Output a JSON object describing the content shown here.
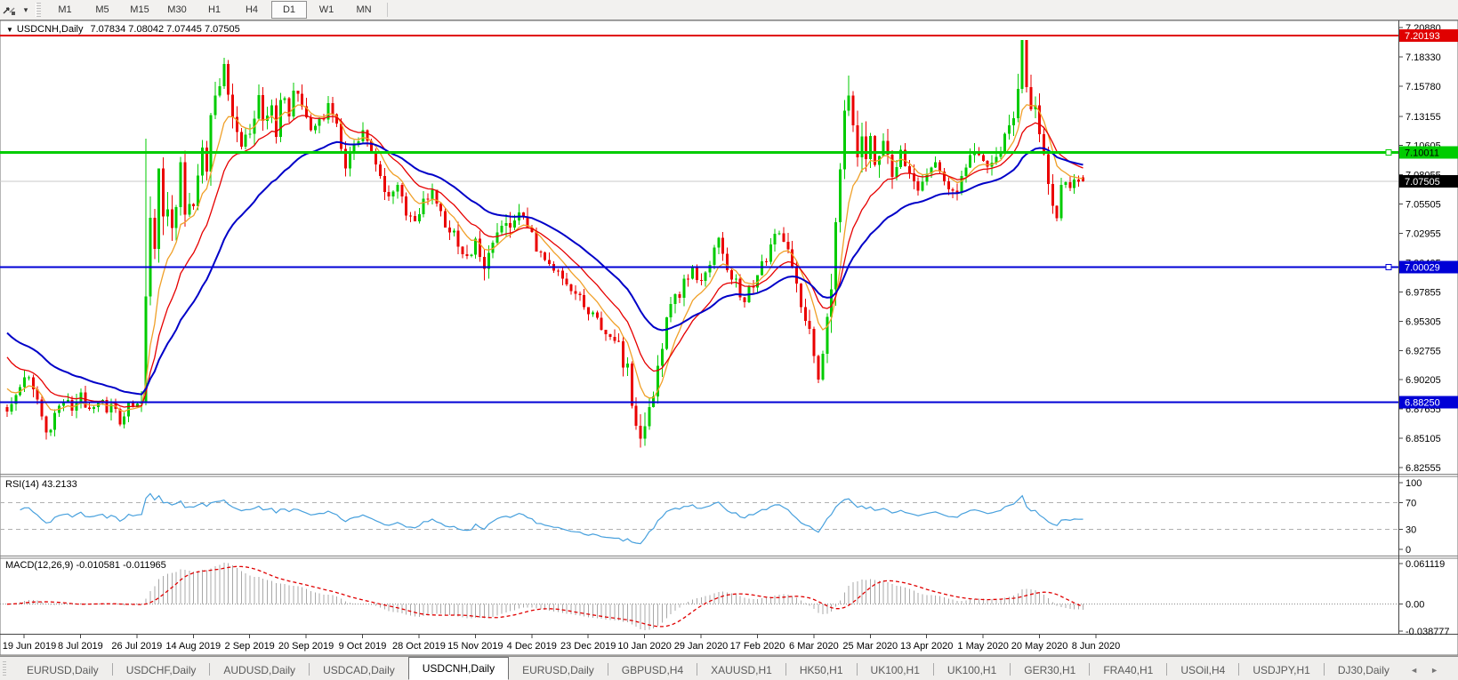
{
  "toolbar": {
    "dropdown_icon": "▾",
    "timeframes": [
      "M1",
      "M5",
      "M15",
      "M30",
      "H1",
      "H4",
      "D1",
      "W1",
      "MN"
    ],
    "active_timeframe": "D1"
  },
  "chart": {
    "title_arrow": "▼",
    "symbol_title": "USDCNH,Daily",
    "ohlc_text": "7.07834 7.08042 7.07445 7.07505"
  },
  "tabs": {
    "items": [
      "EURUSD,Daily",
      "USDCHF,Daily",
      "AUDUSD,Daily",
      "USDCAD,Daily",
      "USDCNH,Daily",
      "EURUSD,Daily",
      "GBPUSD,H4",
      "XAUUSD,H1",
      "HK50,H1",
      "UK100,H1",
      "UK100,H1",
      "GER30,H1",
      "FRA40,H1",
      "USOil,H4",
      "USDJPY,H1",
      "DJ30,Daily"
    ],
    "active_index": 4,
    "scroll_left": "◄",
    "scroll_right": "►"
  },
  "price_axis": {
    "ticks": [
      "7.20880",
      "7.18330",
      "7.15780",
      "7.13155",
      "7.10605",
      "7.08055",
      "7.05505",
      "7.02955",
      "7.00405",
      "6.97855",
      "6.95305",
      "6.92755",
      "6.90205",
      "6.87655",
      "6.85105",
      "6.82555"
    ]
  },
  "price_levels": [
    {
      "name": "resistance-line",
      "value": "7.20193",
      "price": 7.20193,
      "color": "#E00000",
      "badge_text": "#FFFFFF",
      "thickness": 2,
      "handle": false
    },
    {
      "name": "green-level-line",
      "value": "7.10011",
      "price": 7.10011,
      "color": "#00CC00",
      "badge_text": "#000000",
      "thickness": 3,
      "handle": true
    },
    {
      "name": "current-price-line",
      "value": "7.07505",
      "price": 7.07505,
      "color": "#C8C8C8",
      "badge_bg": "#000000",
      "badge_text": "#FFFFFF",
      "thickness": 1,
      "handle": false
    },
    {
      "name": "support-line-700",
      "value": "7.00029",
      "price": 7.00029,
      "color": "#0000D6",
      "badge_text": "#FFFFFF",
      "thickness": 2,
      "handle": true
    },
    {
      "name": "support-line-688",
      "value": "6.88250",
      "price": 6.8825,
      "color": "#0000D6",
      "badge_text": "#FFFFFF",
      "thickness": 2,
      "handle": false
    }
  ],
  "chart_data": {
    "type": "candlestick",
    "symbol": "USDCNH",
    "timeframe": "Daily",
    "current": {
      "open": 7.07834,
      "high": 7.08042,
      "low": 7.07445,
      "close": 7.07505
    },
    "y_range": {
      "top": 7.2088,
      "bottom": 6.82555
    },
    "x_dates": [
      "19 Jun 2019",
      "8 Jul 2019",
      "26 Jul 2019",
      "14 Aug 2019",
      "2 Sep 2019",
      "20 Sep 2019",
      "9 Oct 2019",
      "28 Oct 2019",
      "15 Nov 2019",
      "4 Dec 2019",
      "23 Dec 2019",
      "10 Jan 2020",
      "29 Jan 2020",
      "17 Feb 2020",
      "6 Mar 2020",
      "25 Mar 2020",
      "13 Apr 2020",
      "1 May 2020",
      "20 May 2020",
      "8 Jun 2020"
    ],
    "num_candles": 249,
    "candle_colors": {
      "up": "#00CB00",
      "down": "#EA0000"
    },
    "close_anchors": [
      [
        0,
        6.878
      ],
      [
        3,
        6.895
      ],
      [
        5,
        6.908
      ],
      [
        7,
        6.885
      ],
      [
        9,
        6.856
      ],
      [
        11,
        6.872
      ],
      [
        13,
        6.884
      ],
      [
        15,
        6.877
      ],
      [
        17,
        6.888
      ],
      [
        19,
        6.879
      ],
      [
        21,
        6.886
      ],
      [
        23,
        6.872
      ],
      [
        25,
        6.88
      ],
      [
        26,
        6.86
      ],
      [
        27,
        6.874
      ],
      [
        29,
        6.882
      ],
      [
        31,
        6.884
      ],
      [
        32,
        6.97
      ],
      [
        33,
        7.04
      ],
      [
        34,
        7.018
      ],
      [
        35,
        7.075
      ],
      [
        36,
        7.048
      ],
      [
        37,
        7.062
      ],
      [
        38,
        7.04
      ],
      [
        39,
        7.058
      ],
      [
        40,
        7.085
      ],
      [
        41,
        7.038
      ],
      [
        42,
        7.052
      ],
      [
        43,
        7.062
      ],
      [
        44,
        7.08
      ],
      [
        45,
        7.098
      ],
      [
        46,
        7.088
      ],
      [
        47,
        7.124
      ],
      [
        48,
        7.148
      ],
      [
        49,
        7.168
      ],
      [
        50,
        7.186
      ],
      [
        51,
        7.15
      ],
      [
        52,
        7.128
      ],
      [
        53,
        7.118
      ],
      [
        55,
        7.108
      ],
      [
        57,
        7.132
      ],
      [
        58,
        7.148
      ],
      [
        59,
        7.126
      ],
      [
        61,
        7.138
      ],
      [
        62,
        7.12
      ],
      [
        63,
        7.152
      ],
      [
        64,
        7.142
      ],
      [
        65,
        7.134
      ],
      [
        66,
        7.148
      ],
      [
        67,
        7.158
      ],
      [
        68,
        7.14
      ],
      [
        69,
        7.132
      ],
      [
        70,
        7.118
      ],
      [
        72,
        7.13
      ],
      [
        74,
        7.14
      ],
      [
        76,
        7.122
      ],
      [
        78,
        7.092
      ],
      [
        80,
        7.102
      ],
      [
        82,
        7.118
      ],
      [
        84,
        7.098
      ],
      [
        86,
        7.078
      ],
      [
        88,
        7.062
      ],
      [
        90,
        7.068
      ],
      [
        92,
        7.05
      ],
      [
        94,
        7.042
      ],
      [
        96,
        7.058
      ],
      [
        98,
        7.068
      ],
      [
        100,
        7.048
      ],
      [
        102,
        7.032
      ],
      [
        104,
        7.022
      ],
      [
        106,
        7.012
      ],
      [
        108,
        7.018
      ],
      [
        110,
        7.006
      ],
      [
        112,
        7.022
      ],
      [
        114,
        7.034
      ],
      [
        116,
        7.028
      ],
      [
        117,
        7.048
      ],
      [
        119,
        7.038
      ],
      [
        121,
        7.026
      ],
      [
        123,
        7.014
      ],
      [
        125,
        7.004
      ],
      [
        127,
        6.996
      ],
      [
        129,
        6.988
      ],
      [
        131,
        6.978
      ],
      [
        133,
        6.966
      ],
      [
        135,
        6.956
      ],
      [
        137,
        6.946
      ],
      [
        139,
        6.938
      ],
      [
        141,
        6.93
      ],
      [
        143,
        6.908
      ],
      [
        144,
        6.888
      ],
      [
        145,
        6.868
      ],
      [
        146,
        6.85
      ],
      [
        147,
        6.862
      ],
      [
        148,
        6.882
      ],
      [
        149,
        6.896
      ],
      [
        150,
        6.912
      ],
      [
        151,
        6.936
      ],
      [
        152,
        6.956
      ],
      [
        154,
        6.972
      ],
      [
        156,
        6.988
      ],
      [
        158,
        7.0
      ],
      [
        160,
        6.988
      ],
      [
        162,
        7.006
      ],
      [
        164,
        7.022
      ],
      [
        166,
        7.002
      ],
      [
        168,
        6.986
      ],
      [
        170,
        6.972
      ],
      [
        172,
        6.986
      ],
      [
        174,
        7.002
      ],
      [
        176,
        7.016
      ],
      [
        178,
        7.032
      ],
      [
        180,
        7.012
      ],
      [
        182,
        6.982
      ],
      [
        184,
        6.956
      ],
      [
        186,
        6.928
      ],
      [
        187,
        6.902
      ],
      [
        188,
        6.922
      ],
      [
        189,
        6.952
      ],
      [
        190,
        6.992
      ],
      [
        191,
        7.032
      ],
      [
        192,
        7.082
      ],
      [
        193,
        7.124
      ],
      [
        194,
        7.16
      ],
      [
        195,
        7.132
      ],
      [
        196,
        7.102
      ],
      [
        197,
        7.122
      ],
      [
        198,
        7.096
      ],
      [
        199,
        7.112
      ],
      [
        200,
        7.092
      ],
      [
        202,
        7.102
      ],
      [
        204,
        7.086
      ],
      [
        206,
        7.096
      ],
      [
        208,
        7.076
      ],
      [
        210,
        7.062
      ],
      [
        212,
        7.076
      ],
      [
        214,
        7.092
      ],
      [
        216,
        7.076
      ],
      [
        218,
        7.062
      ],
      [
        220,
        7.076
      ],
      [
        222,
        7.092
      ],
      [
        224,
        7.102
      ],
      [
        226,
        7.086
      ],
      [
        228,
        7.096
      ],
      [
        230,
        7.112
      ],
      [
        232,
        7.132
      ],
      [
        233,
        7.162
      ],
      [
        234,
        7.19
      ],
      [
        235,
        7.156
      ],
      [
        236,
        7.132
      ],
      [
        237,
        7.146
      ],
      [
        238,
        7.12
      ],
      [
        239,
        7.1
      ],
      [
        240,
        7.08
      ],
      [
        241,
        7.06
      ],
      [
        242,
        7.046
      ],
      [
        243,
        7.066
      ],
      [
        244,
        7.08
      ],
      [
        245,
        7.07
      ],
      [
        246,
        7.08
      ],
      [
        247,
        7.072
      ],
      [
        248,
        7.075
      ]
    ],
    "volatility_anchors": [
      [
        0,
        0.013
      ],
      [
        30,
        0.013
      ],
      [
        32,
        0.04
      ],
      [
        34,
        0.034
      ],
      [
        38,
        0.026
      ],
      [
        45,
        0.022
      ],
      [
        50,
        0.024
      ],
      [
        60,
        0.016
      ],
      [
        70,
        0.015
      ],
      [
        85,
        0.013
      ],
      [
        100,
        0.012
      ],
      [
        112,
        0.02
      ],
      [
        118,
        0.016
      ],
      [
        130,
        0.01
      ],
      [
        140,
        0.012
      ],
      [
        144,
        0.022
      ],
      [
        147,
        0.028
      ],
      [
        152,
        0.016
      ],
      [
        160,
        0.013
      ],
      [
        175,
        0.012
      ],
      [
        184,
        0.018
      ],
      [
        190,
        0.026
      ],
      [
        194,
        0.034
      ],
      [
        200,
        0.024
      ],
      [
        210,
        0.014
      ],
      [
        220,
        0.012
      ],
      [
        230,
        0.018
      ],
      [
        234,
        0.028
      ],
      [
        238,
        0.02
      ],
      [
        244,
        0.014
      ],
      [
        248,
        0.012
      ]
    ],
    "overrides": [
      {
        "i": 32,
        "h": 7.112
      },
      {
        "i": 146,
        "l": 6.843
      },
      {
        "i": 234,
        "h": 7.1965
      }
    ],
    "moving_averages": [
      {
        "name": "ma-fast",
        "period": 8,
        "color": "#F0A028",
        "seed": 6.9
      },
      {
        "name": "ma-mid",
        "period": 16,
        "color": "#E60000",
        "seed": 6.928
      },
      {
        "name": "ma-slow",
        "period": 34,
        "color": "#0000C8",
        "seed": 6.947
      }
    ],
    "indicators": [
      {
        "name": "RSI",
        "label": "RSI(14) 43.2133",
        "period": 14,
        "value": 43.2133,
        "range": [
          0,
          100
        ],
        "levels": [
          70,
          30
        ],
        "axis_labels": [
          "100",
          "70",
          "30",
          "0"
        ],
        "color": "#47A0DD"
      },
      {
        "name": "MACD",
        "label": "MACD(12,26,9) -0.010581 -0.011965",
        "fast": 12,
        "slow": 26,
        "signal": 9,
        "values": [
          -0.010581,
          -0.011965
        ],
        "range": [
          -0.038777,
          0.061119
        ],
        "axis_labels": [
          "0.061119",
          "0.00",
          "-0.038777"
        ],
        "histogram_color": "#A8A8A8",
        "signal_color": "#E00000"
      }
    ]
  }
}
